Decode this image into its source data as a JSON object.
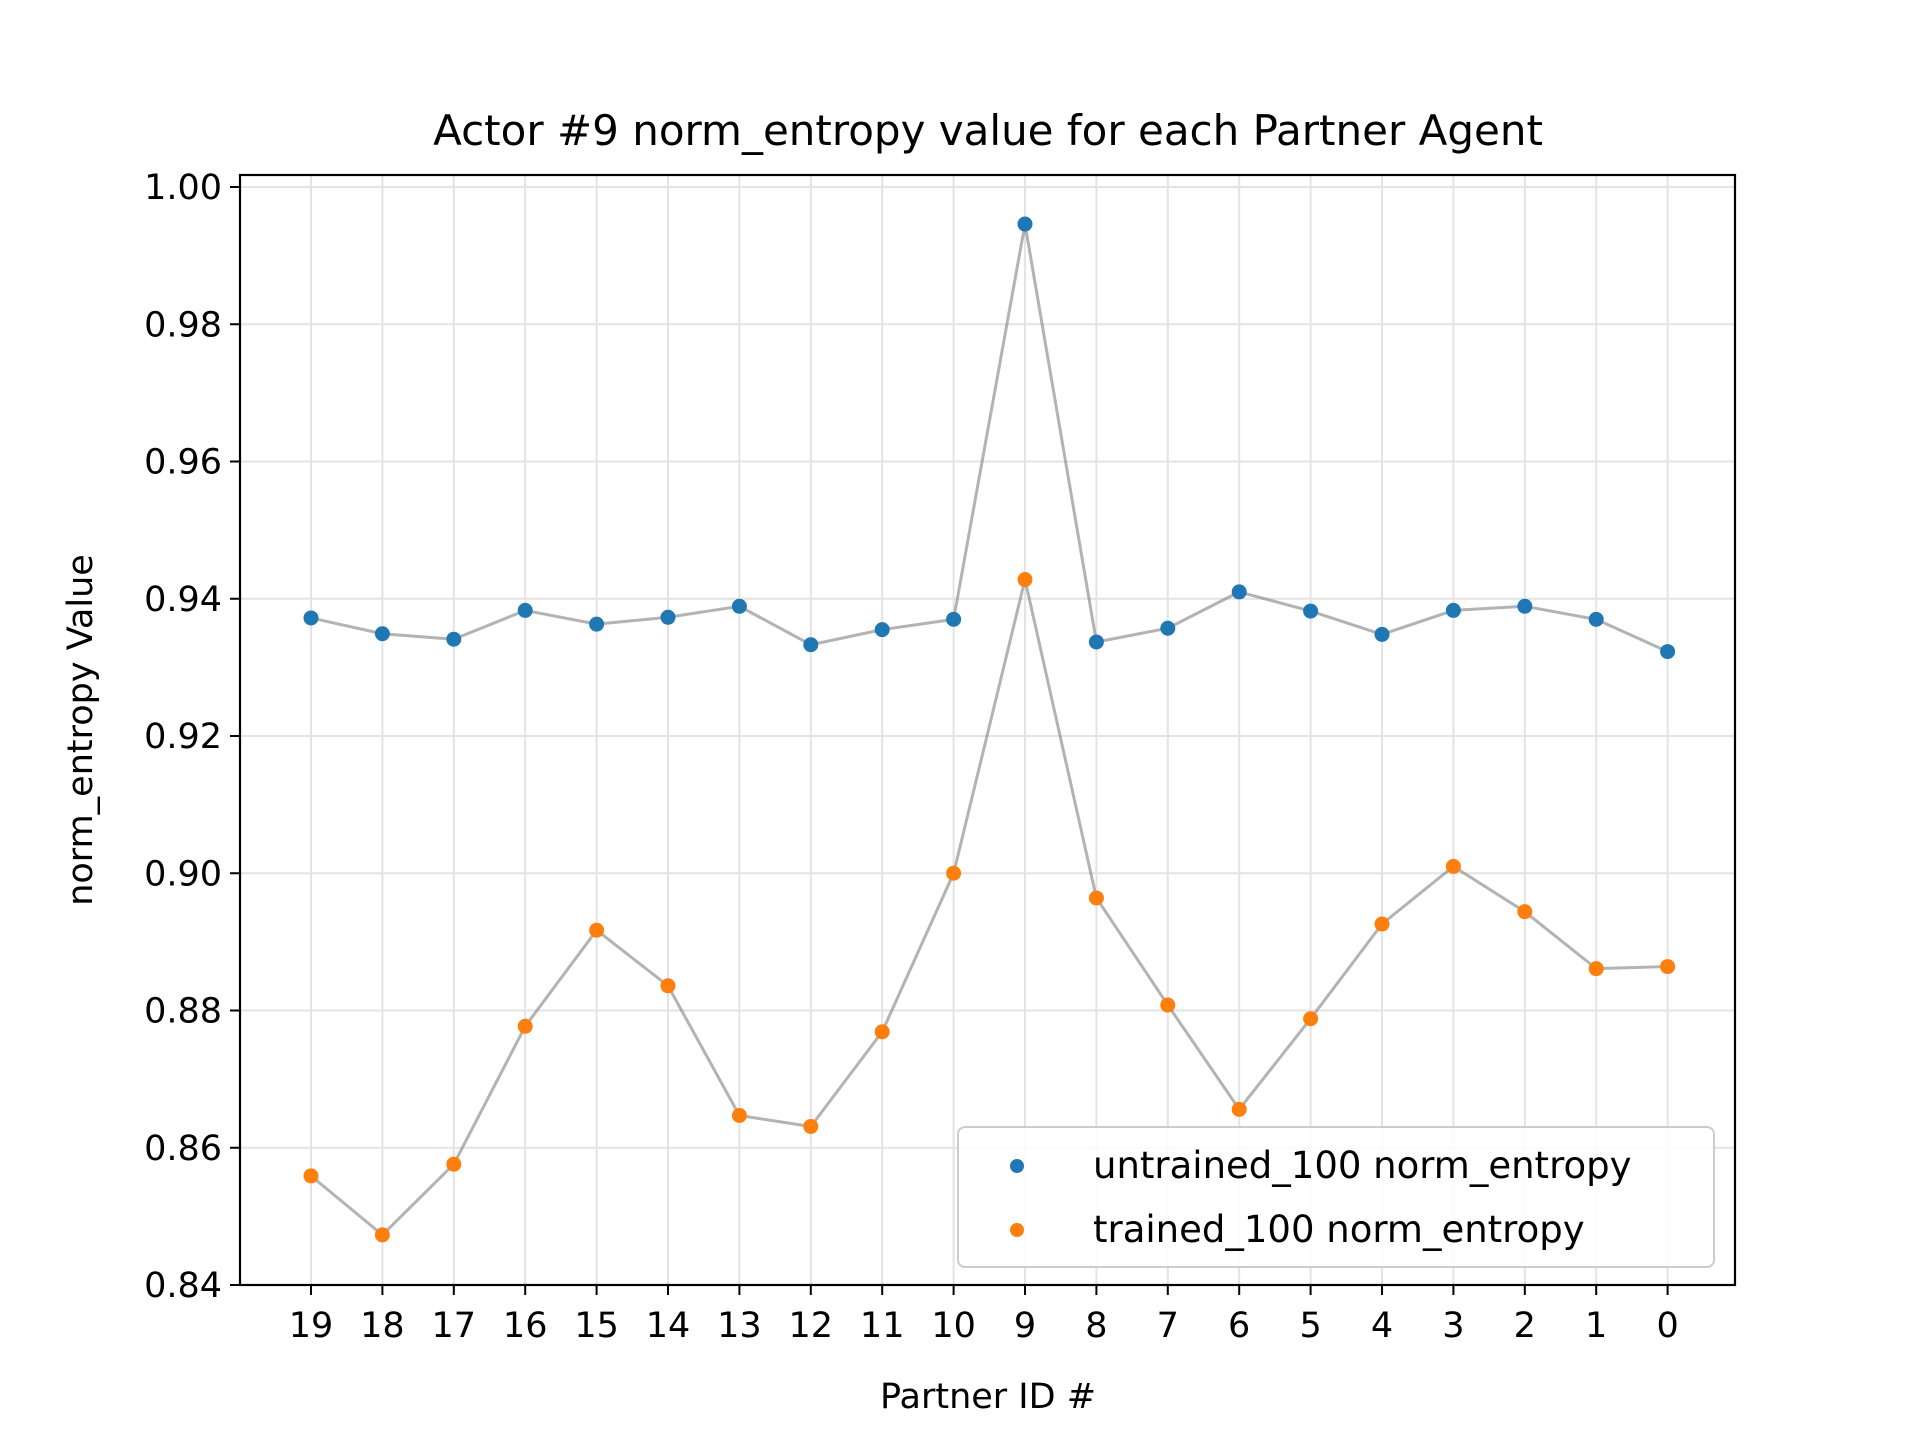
{
  "chart_data": {
    "type": "scatter",
    "title": "Actor #9 norm_entropy value for each Partner Agent",
    "xlabel": "Partner ID #",
    "ylabel": "norm_entropy Value",
    "categories": [
      "19",
      "18",
      "17",
      "16",
      "15",
      "14",
      "13",
      "12",
      "11",
      "10",
      "9",
      "8",
      "7",
      "6",
      "5",
      "4",
      "3",
      "2",
      "1",
      "0"
    ],
    "ylim": [
      0.84,
      1.0
    ],
    "yticks": [
      "0.84",
      "0.86",
      "0.88",
      "0.90",
      "0.92",
      "0.94",
      "0.96",
      "0.98",
      "1.00"
    ],
    "grid": true,
    "legend_position": "lower right",
    "series": [
      {
        "name": "untrained_100 norm_entropy",
        "color": "#1f77b4",
        "values": [
          0.9372,
          0.9349,
          0.9341,
          0.9383,
          0.9363,
          0.9373,
          0.9389,
          0.9333,
          0.9355,
          0.937,
          0.9946,
          0.9337,
          0.9357,
          0.941,
          0.9382,
          0.9348,
          0.9383,
          0.9389,
          0.937,
          0.9323
        ]
      },
      {
        "name": "trained_100 norm_entropy",
        "color": "#ff7f0e",
        "values": [
          0.8559,
          0.8473,
          0.8576,
          0.8777,
          0.8917,
          0.8836,
          0.8647,
          0.8631,
          0.8769,
          0.9,
          0.9428,
          0.8964,
          0.8808,
          0.8656,
          0.8788,
          0.8926,
          0.901,
          0.8944,
          0.8861,
          0.8864
        ]
      }
    ]
  }
}
